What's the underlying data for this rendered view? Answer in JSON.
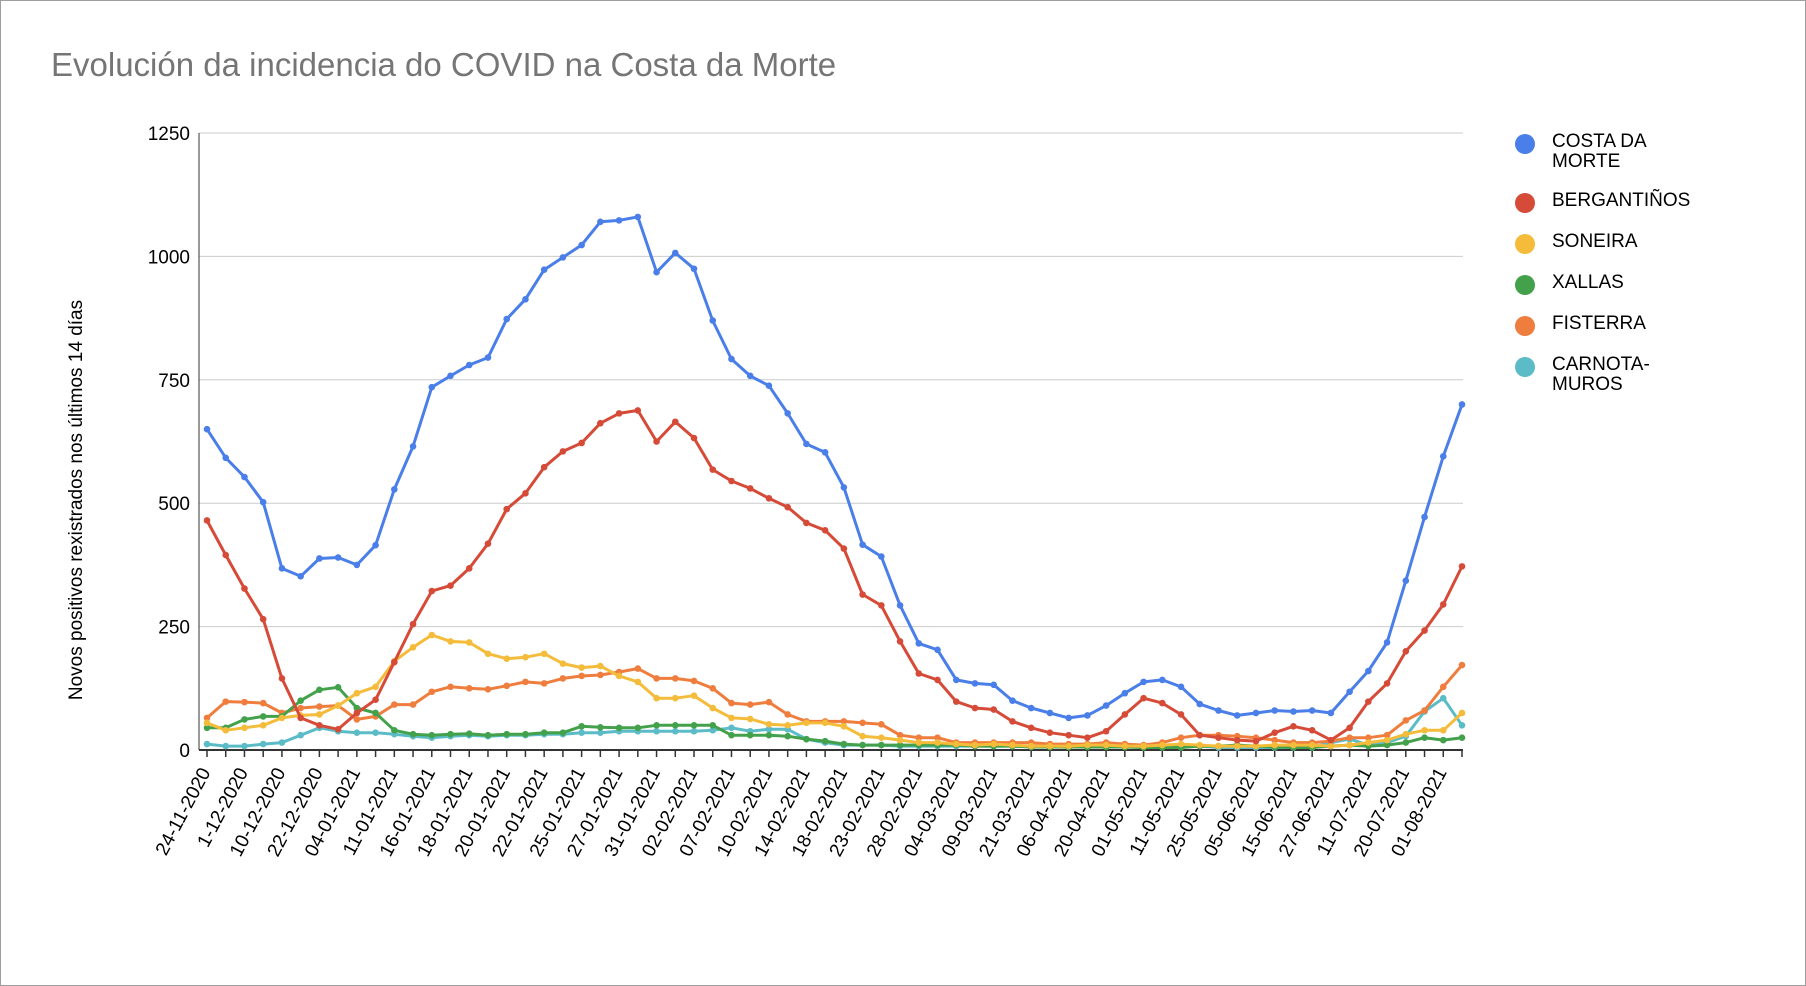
{
  "chart_data": {
    "type": "line",
    "title": "Evolución da incidencia do COVID na Costa da Morte",
    "xlabel": "",
    "ylabel": "Novos positivos rexistrados nos últimos 14 días",
    "ylim": [
      0,
      1250
    ],
    "yticks": [
      "0",
      "250",
      "500",
      "750",
      "1000",
      "1250"
    ],
    "grid": true,
    "legend_position": "right",
    "x_tick_labels": [
      "24-11-2020",
      "1-12-2020",
      "10-12-2020",
      "22-12-2020",
      "04-01-2021",
      "11-01-2021",
      "16-01-2021",
      "18-01-2021",
      "20-01-2021",
      "22-01-2021",
      "25-01-2021",
      "27-01-2021",
      "31-01-2021",
      "02-02-2021",
      "07-02-2021",
      "10-02-2021",
      "14-02-2021",
      "18-02-2021",
      "23-02-2021",
      "28-02-2021",
      "04-03-2021",
      "09-03-2021",
      "21-03-2021",
      "06-04-2021",
      "20-04-2021",
      "01-05-2021",
      "11-05-2021",
      "25-05-2021",
      "05-06-2021",
      "15-06-2021",
      "27-06-2021",
      "11-07-2021",
      "20-07-2021",
      "01-08-2021"
    ],
    "series": [
      {
        "name": "COSTA DA MORTE",
        "color": "#4a7ee8",
        "values": [
          650,
          592,
          553,
          502,
          368,
          352,
          388,
          390,
          375,
          415,
          528,
          615,
          735,
          758,
          780,
          795,
          873,
          913,
          973,
          998,
          1023,
          1070,
          1073,
          1080,
          968,
          1007,
          975,
          870,
          792,
          758,
          738,
          682,
          620,
          603,
          532,
          416,
          392,
          293,
          216,
          203,
          142,
          135,
          132,
          100,
          85,
          75,
          65,
          70,
          90,
          115,
          138,
          142,
          128,
          93,
          80,
          70,
          75,
          80,
          78,
          80,
          75,
          118,
          160,
          218,
          343,
          472,
          595,
          700
        ]
      },
      {
        "name": "BERGANTIÑOS",
        "color": "#d64a38",
        "values": [
          465,
          395,
          327,
          265,
          145,
          65,
          50,
          42,
          75,
          102,
          178,
          255,
          322,
          333,
          368,
          418,
          488,
          520,
          573,
          605,
          622,
          662,
          682,
          688,
          625,
          665,
          632,
          568,
          545,
          530,
          510,
          492,
          460,
          445,
          408,
          315,
          293,
          220,
          155,
          142,
          98,
          85,
          82,
          58,
          45,
          35,
          30,
          25,
          38,
          72,
          105,
          95,
          72,
          30,
          25,
          20,
          18,
          35,
          48,
          40,
          20,
          45,
          98,
          135,
          200,
          242,
          295,
          372
        ]
      },
      {
        "name": "SONEIRA",
        "color": "#f4bc3a",
        "values": [
          55,
          40,
          45,
          50,
          65,
          70,
          72,
          90,
          115,
          128,
          180,
          208,
          233,
          220,
          218,
          195,
          185,
          188,
          195,
          175,
          167,
          170,
          150,
          138,
          105,
          105,
          110,
          85,
          65,
          63,
          52,
          50,
          55,
          55,
          48,
          28,
          25,
          20,
          15,
          15,
          12,
          10,
          12,
          10,
          8,
          8,
          8,
          10,
          10,
          8,
          8,
          10,
          12,
          10,
          8,
          8,
          8,
          10,
          10,
          10,
          8,
          10,
          15,
          20,
          32,
          40,
          40,
          75
        ]
      },
      {
        "name": "XALLAS",
        "color": "#44a14b",
        "values": [
          45,
          45,
          62,
          68,
          68,
          100,
          122,
          127,
          85,
          75,
          40,
          32,
          30,
          32,
          33,
          30,
          32,
          32,
          35,
          35,
          48,
          46,
          45,
          45,
          50,
          50,
          50,
          50,
          30,
          30,
          30,
          28,
          22,
          18,
          12,
          10,
          10,
          10,
          10,
          10,
          10,
          8,
          8,
          8,
          6,
          6,
          6,
          6,
          6,
          6,
          5,
          5,
          5,
          8,
          8,
          10,
          8,
          6,
          5,
          5,
          8,
          10,
          8,
          10,
          15,
          25,
          20,
          25
        ]
      },
      {
        "name": "FISTERRA",
        "color": "#ef7d3d",
        "values": [
          65,
          98,
          97,
          95,
          75,
          85,
          88,
          90,
          62,
          68,
          92,
          92,
          118,
          128,
          125,
          123,
          130,
          138,
          135,
          145,
          150,
          152,
          158,
          165,
          145,
          145,
          140,
          125,
          95,
          92,
          97,
          72,
          58,
          58,
          58,
          55,
          52,
          30,
          25,
          25,
          15,
          15,
          15,
          15,
          15,
          12,
          12,
          12,
          15,
          12,
          10,
          15,
          25,
          30,
          30,
          28,
          25,
          20,
          15,
          15,
          18,
          25,
          25,
          30,
          60,
          80,
          128,
          172
        ]
      },
      {
        "name": "CARNOTA-MUROS",
        "color": "#5bbcc8",
        "values": [
          12,
          8,
          8,
          12,
          15,
          30,
          45,
          38,
          35,
          35,
          32,
          28,
          25,
          28,
          30,
          28,
          30,
          30,
          32,
          32,
          35,
          35,
          38,
          38,
          38,
          38,
          38,
          40,
          45,
          38,
          42,
          42,
          22,
          15,
          10,
          10,
          10,
          8,
          8,
          8,
          8,
          8,
          8,
          8,
          8,
          6,
          6,
          8,
          8,
          6,
          6,
          8,
          8,
          8,
          5,
          5,
          5,
          5,
          5,
          5,
          15,
          22,
          10,
          15,
          28,
          78,
          105,
          50
        ]
      }
    ]
  }
}
